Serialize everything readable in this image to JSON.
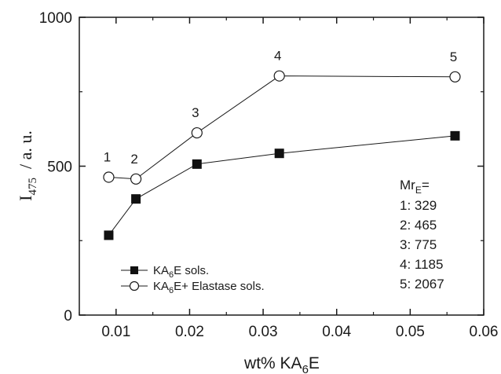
{
  "chart_data": {
    "type": "line",
    "xlabel": {
      "main": "wt% KA",
      "sub": "6",
      "tail": "E"
    },
    "ylabel": {
      "main": "I",
      "sub": "475",
      "tail": "  / a. u."
    },
    "xlim": [
      0.005,
      0.06
    ],
    "ylim": [
      0,
      1000
    ],
    "x_ticks": [
      0.01,
      0.02,
      0.03,
      0.04,
      0.05,
      0.06
    ],
    "x_tick_labels": [
      "0.01",
      "0.02",
      "0.03",
      "0.04",
      "0.05",
      "0.06"
    ],
    "y_ticks": [
      0,
      500,
      1000
    ],
    "y_tick_labels": [
      "0",
      "500",
      "1000"
    ],
    "legend_position": "bottom-left",
    "series": [
      {
        "name": {
          "main": "KA",
          "sub": "6",
          "tail": "E sols."
        },
        "marker": "filled-square",
        "x": [
          0.009,
          0.0127,
          0.021,
          0.0322,
          0.0561
        ],
        "y": [
          268,
          390,
          507,
          543,
          602
        ]
      },
      {
        "name": {
          "main": "KA",
          "sub": "6",
          "tail": "E+ Elastase sols."
        },
        "marker": "open-circle",
        "x": [
          0.009,
          0.0127,
          0.021,
          0.0322,
          0.0561
        ],
        "y": [
          463,
          457,
          612,
          803,
          800
        ],
        "point_labels": [
          "1",
          "2",
          "3",
          "4",
          "5"
        ]
      }
    ],
    "annotation": {
      "heading": {
        "main": "Mr",
        "sub": "E",
        "tail": "="
      },
      "lines": [
        "1: 329",
        "2: 465",
        "3: 775",
        "4: 1185",
        "5: 2067"
      ]
    }
  }
}
